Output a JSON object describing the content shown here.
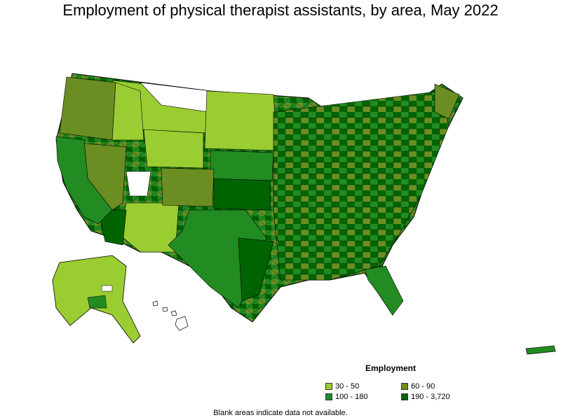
{
  "title": "Employment of physical therapist assistants, by area, May 2022",
  "legend": {
    "title": "Employment",
    "items": [
      {
        "label": "30 - 50",
        "color": "#9acd32"
      },
      {
        "label": "60 - 90",
        "color": "#6b8e23"
      },
      {
        "label": "100 - 180",
        "color": "#228b22"
      },
      {
        "label": "190 - 3,720",
        "color": "#006400"
      }
    ]
  },
  "footnote": "Blank areas indicate data not available.",
  "colors": {
    "no_data": "#ffffff",
    "border": "#000000"
  }
}
